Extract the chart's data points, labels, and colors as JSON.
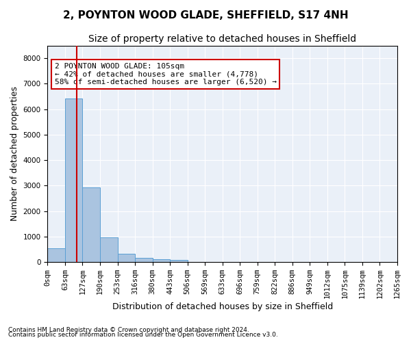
{
  "title": "2, POYNTON WOOD GLADE, SHEFFIELD, S17 4NH",
  "subtitle": "Size of property relative to detached houses in Sheffield",
  "xlabel": "Distribution of detached houses by size in Sheffield",
  "ylabel": "Number of detached properties",
  "bar_values": [
    530,
    6430,
    2930,
    970,
    330,
    160,
    100,
    70,
    0,
    0,
    0,
    0,
    0,
    0,
    0,
    0,
    0,
    0,
    0,
    0
  ],
  "bar_labels": [
    "0sqm",
    "63sqm",
    "127sqm",
    "190sqm",
    "253sqm",
    "316sqm",
    "380sqm",
    "443sqm",
    "506sqm",
    "569sqm",
    "633sqm",
    "696sqm",
    "759sqm",
    "822sqm",
    "886sqm",
    "949sqm",
    "1012sqm",
    "1075sqm",
    "1139sqm",
    "1202sqm",
    "1265sqm"
  ],
  "bar_color": "#aac4e0",
  "bar_edge_color": "#5a9fd4",
  "background_color": "#eaf0f8",
  "grid_color": "#ffffff",
  "annotation_box_color": "#cc0000",
  "property_line_color": "#cc0000",
  "property_value": 105,
  "annotation_text_line1": "2 POYNTON WOOD GLADE: 105sqm",
  "annotation_text_line2": "← 42% of detached houses are smaller (4,778)",
  "annotation_text_line3": "58% of semi-detached houses are larger (6,520) →",
  "ylim": [
    0,
    8500
  ],
  "yticks": [
    0,
    1000,
    2000,
    3000,
    4000,
    5000,
    6000,
    7000,
    8000
  ],
  "footnote1": "Contains HM Land Registry data © Crown copyright and database right 2024.",
  "footnote2": "Contains public sector information licensed under the Open Government Licence v3.0.",
  "title_fontsize": 11,
  "subtitle_fontsize": 10,
  "label_fontsize": 9,
  "tick_fontsize": 7.5,
  "annotation_fontsize": 8
}
